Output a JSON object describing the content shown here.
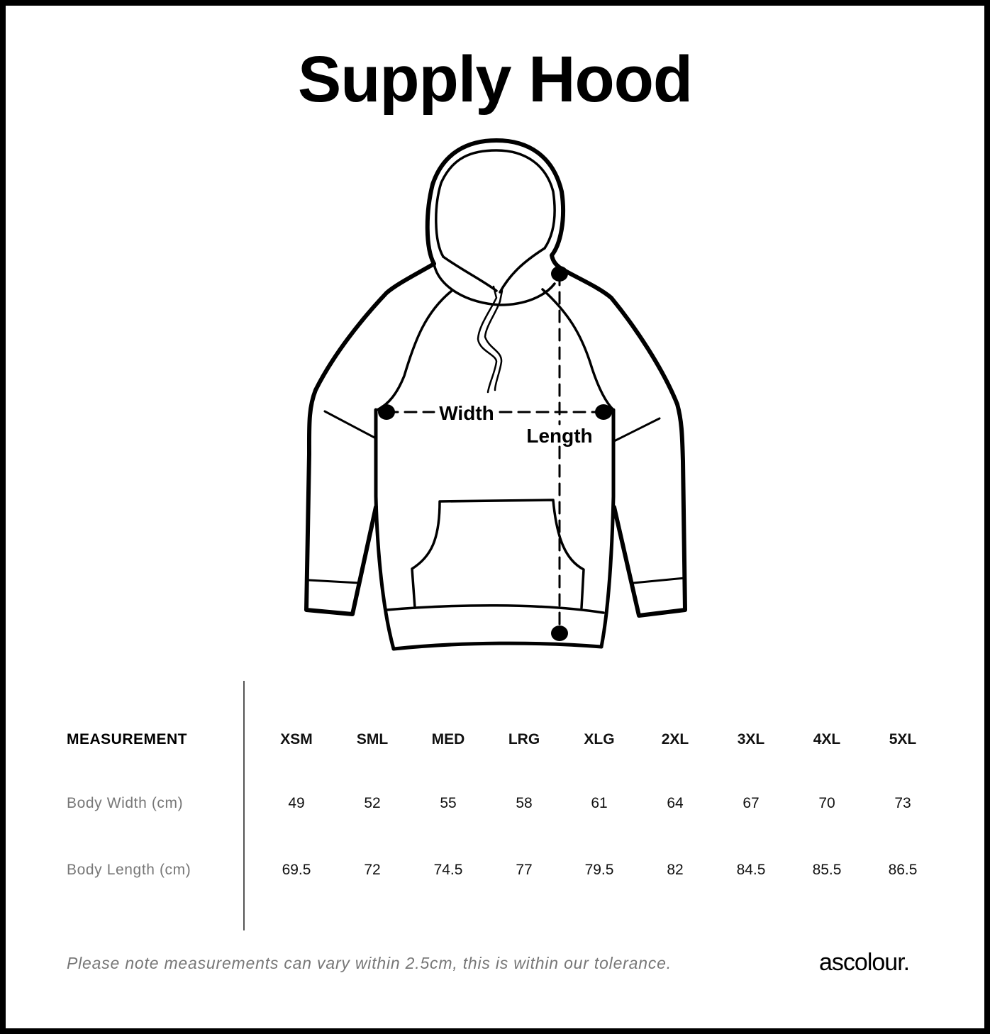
{
  "title": "Supply Hood",
  "diagram": {
    "width_label": "Width",
    "length_label": "Length"
  },
  "table": {
    "header_label": "MEASUREMENT",
    "sizes": [
      "XSM",
      "SML",
      "MED",
      "LRG",
      "XLG",
      "2XL",
      "3XL",
      "4XL",
      "5XL"
    ],
    "rows": [
      {
        "label": "Body Width (cm)",
        "values": [
          "49",
          "52",
          "55",
          "58",
          "61",
          "64",
          "67",
          "70",
          "73"
        ]
      },
      {
        "label": "Body Length (cm)",
        "values": [
          "69.5",
          "72",
          "74.5",
          "77",
          "79.5",
          "82",
          "84.5",
          "85.5",
          "86.5"
        ]
      }
    ]
  },
  "note": "Please note measurements can vary within 2.5cm, this is within our tolerance.",
  "brand": "ascolour."
}
